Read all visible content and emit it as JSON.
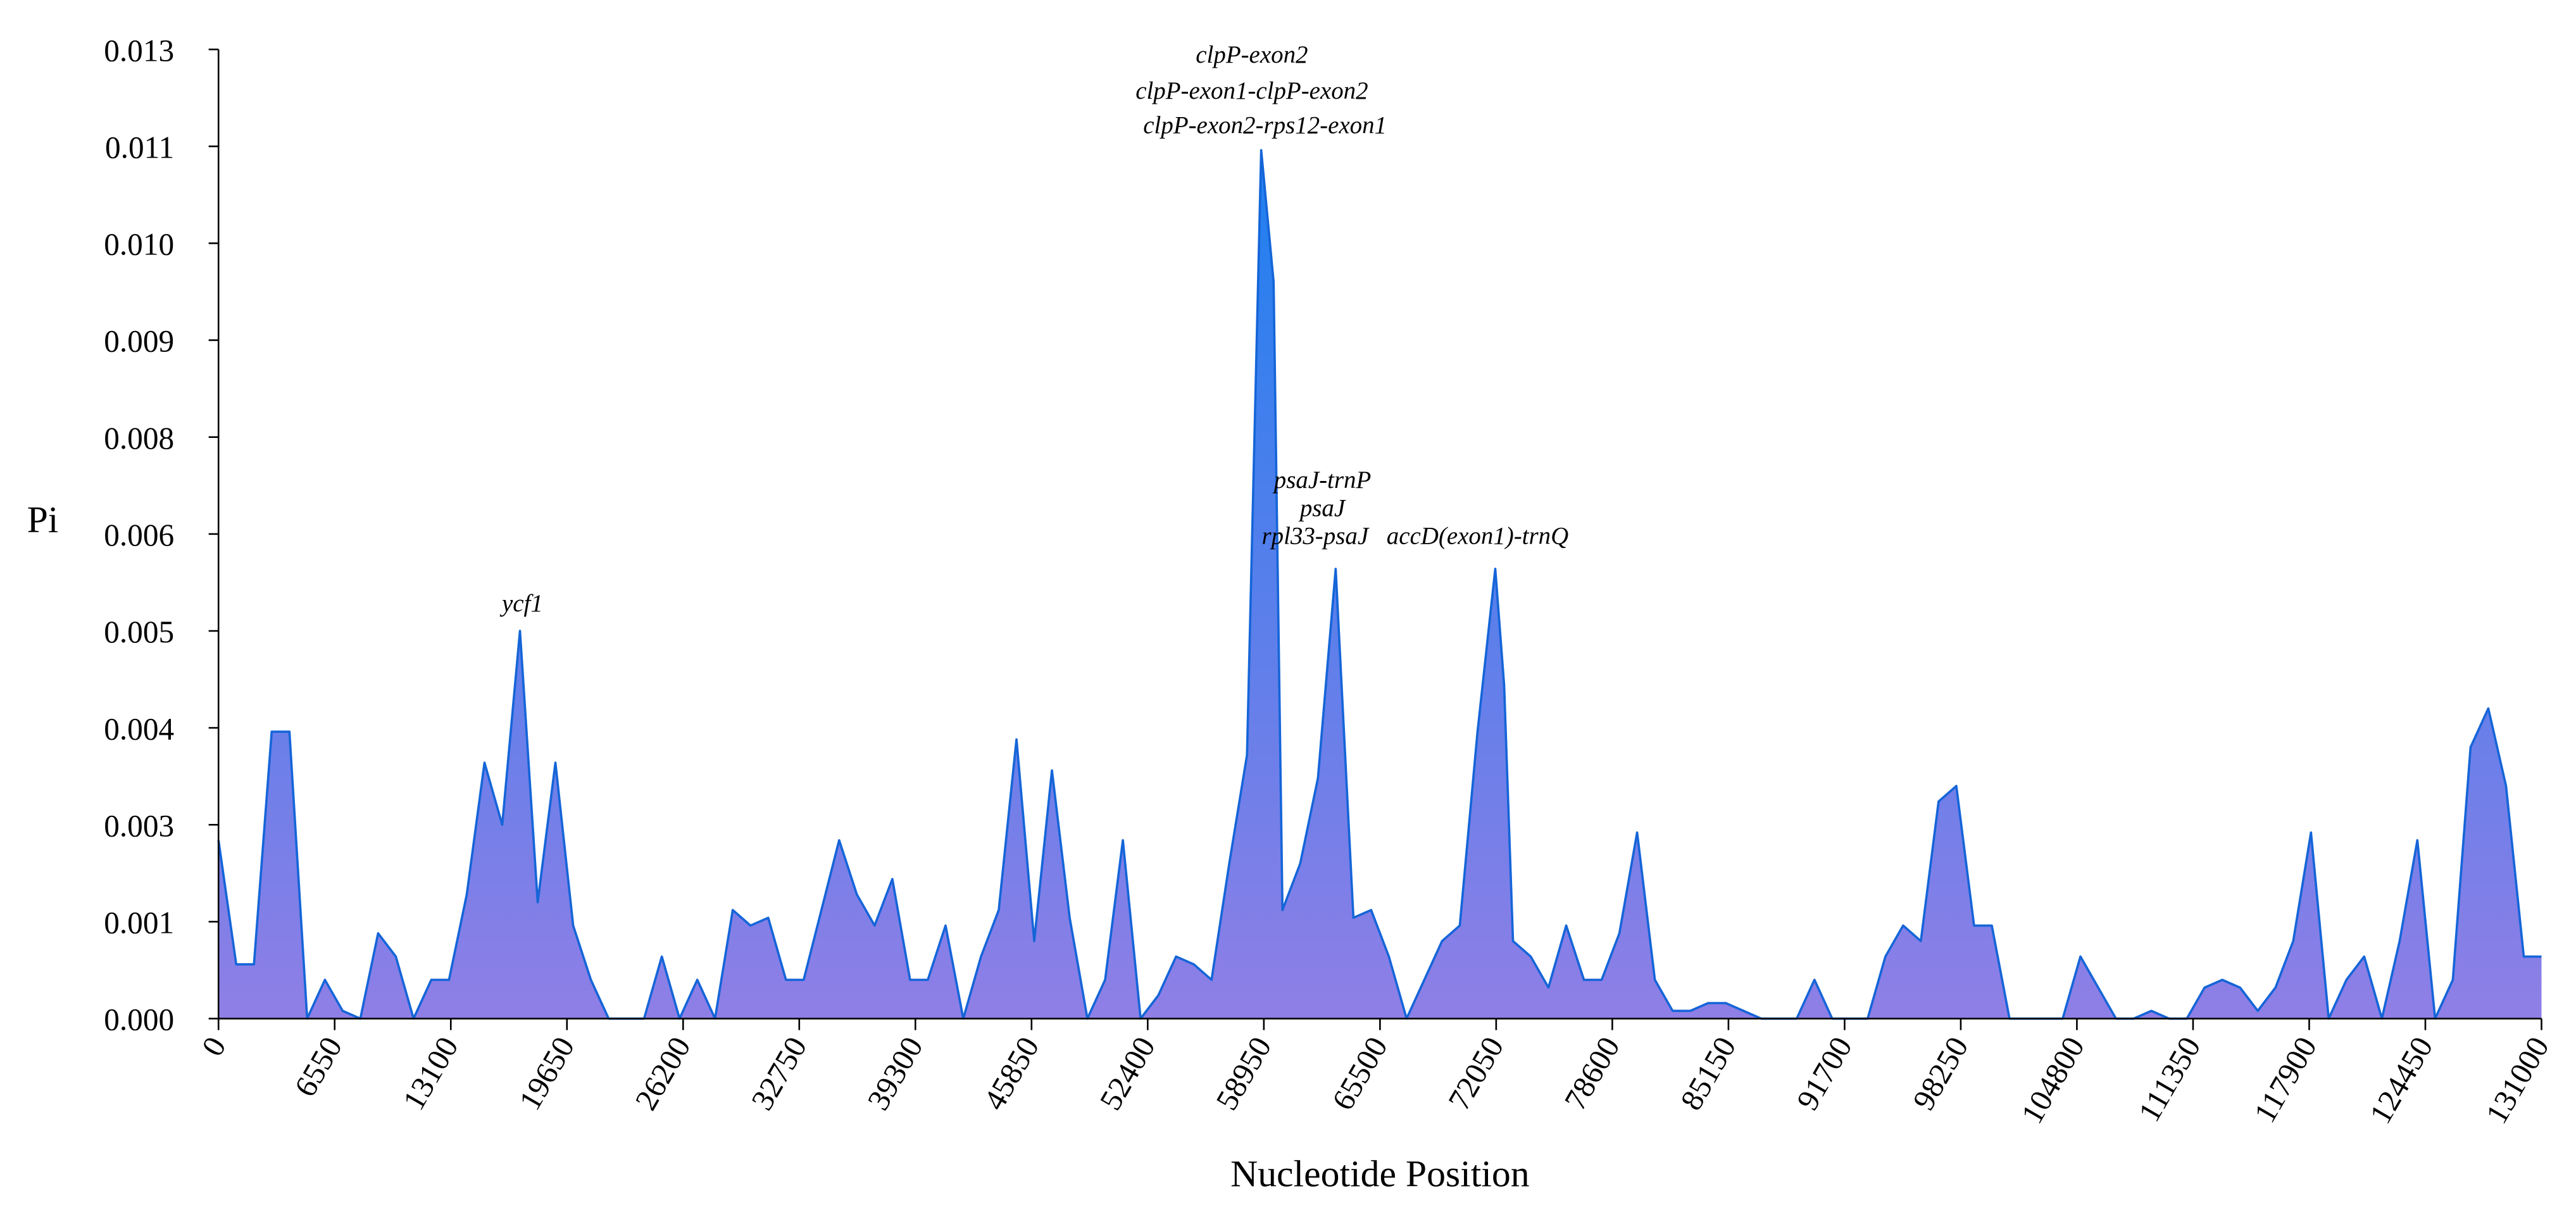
{
  "chart_data": {
    "type": "area",
    "x_label": "Nucleotide Position",
    "y_label": "Pi",
    "annotations": [
      "clpP-exon2",
      "clpP-exon1-clpP-exon2",
      "clpP-exon2-rps12-exon1",
      "psaJ-trnP",
      "psaJ",
      "rpl33-psaJ",
      "accD(exon1)-trnQ",
      "ycf1"
    ],
    "line_color": "#1565d8",
    "fill_colors": [
      "#1e7ff0",
      "#8f7fe6"
    ],
    "xlim": [
      0,
      131000
    ],
    "xticks": [
      0,
      6550,
      13100,
      19650,
      26200,
      32750,
      39300,
      45850,
      52400,
      58950,
      65500,
      72050,
      78600,
      85150,
      91700,
      98250,
      104800,
      111350,
      117900,
      124450,
      131000
    ],
    "ylim": [
      0,
      0.0125
    ],
    "yticks": [
      {
        "value": 0,
        "label": "0.000"
      },
      {
        "value": 0.00125,
        "label": "0.001"
      },
      {
        "value": 0.0025,
        "label": "0.003"
      },
      {
        "value": 0.00375,
        "label": "0.004"
      },
      {
        "value": 0.005,
        "label": "0.005"
      },
      {
        "value": 0.00625,
        "label": "0.006"
      },
      {
        "value": 0.0075,
        "label": "0.008"
      },
      {
        "value": 0.00875,
        "label": "0.009"
      },
      {
        "value": 0.01,
        "label": "0.010"
      },
      {
        "value": 0.01125,
        "label": "0.011"
      },
      {
        "value": 0.0125,
        "label": "0.013"
      }
    ],
    "x": [
      0,
      1000,
      2000,
      3000,
      4000,
      5000,
      6000,
      7000,
      8000,
      9000,
      10000,
      11000,
      12000,
      13000,
      14000,
      15000,
      16000,
      17000,
      18000,
      19000,
      20000,
      21000,
      22000,
      23000,
      24000,
      25000,
      26000,
      27000,
      28000,
      29000,
      30000,
      31000,
      32000,
      33000,
      34000,
      35000,
      36000,
      37000,
      38000,
      39000,
      40000,
      41000,
      42000,
      43000,
      44000,
      45000,
      46000,
      47000,
      48000,
      49000,
      50000,
      51000,
      52000,
      53000,
      54000,
      55000,
      56000,
      57000,
      58000,
      58800,
      59500,
      60000,
      61000,
      62000,
      63000,
      64000,
      65000,
      66000,
      67000,
      68000,
      69000,
      70000,
      71000,
      72000,
      72500,
      73000,
      74000,
      75000,
      76000,
      77000,
      78000,
      79000,
      80000,
      81000,
      82000,
      83000,
      84000,
      85000,
      86000,
      87000,
      88000,
      89000,
      90000,
      91000,
      92000,
      93000,
      94000,
      95000,
      96000,
      97000,
      98000,
      99000,
      100000,
      101000,
      102000,
      103000,
      104000,
      105000,
      106000,
      107000,
      108000,
      109000,
      110000,
      111000,
      112000,
      113000,
      114000,
      115000,
      116000,
      117000,
      118000,
      119000,
      120000,
      121000,
      122000,
      123000,
      124000,
      125000,
      126000,
      127000,
      128000,
      129000,
      130000,
      131000
    ],
    "values": [
      0.0023,
      0.0007,
      0.0007,
      0.0037,
      0.0037,
      0,
      0.0005,
      0.0001,
      0,
      0.0011,
      0.0008,
      0,
      0.0005,
      0.0005,
      0.0016,
      0.0033,
      0.0025,
      0.005,
      0.0015,
      0.0033,
      0.0012,
      0.0005,
      0,
      0,
      0,
      0.0008,
      0,
      0.0005,
      0,
      0.0014,
      0.0012,
      0.0013,
      0.0005,
      0.0005,
      0.0014,
      0.0023,
      0.0016,
      0.0012,
      0.0018,
      0.0005,
      0.0005,
      0.0012,
      0,
      0.0008,
      0.0014,
      0.0036,
      0.001,
      0.0032,
      0.0013,
      0,
      0.0005,
      0.0023,
      0,
      0.0003,
      0.0008,
      0.0007,
      0.0005,
      0.002,
      0.0034,
      0.0112,
      0.0095,
      0.0014,
      0.002,
      0.0031,
      0.0058,
      0.0013,
      0.0014,
      0.0008,
      0,
      0.0005,
      0.001,
      0.0012,
      0.0037,
      0.0058,
      0.0043,
      0.001,
      0.0008,
      0.0004,
      0.0012,
      0.0005,
      0.0005,
      0.0011,
      0.0024,
      0.0005,
      0.0001,
      0.0001,
      0.0002,
      0.0002,
      0.0001,
      0,
      0,
      0,
      0.0005,
      0,
      0,
      0,
      0.0008,
      0.0012,
      0.001,
      0.0028,
      0.003,
      0.0012,
      0.0012,
      0,
      0,
      0,
      0,
      0.0008,
      0.0004,
      0,
      0,
      0.0001,
      0,
      0,
      0.0004,
      0.0005,
      0.0004,
      0.0001,
      0.0004,
      0.001,
      0.0024,
      0,
      0.0005,
      0.0008,
      0,
      0.001,
      0.0023,
      0,
      0.0005,
      0.0035,
      0.004,
      0.003,
      0.0008,
      0.0008
    ]
  }
}
